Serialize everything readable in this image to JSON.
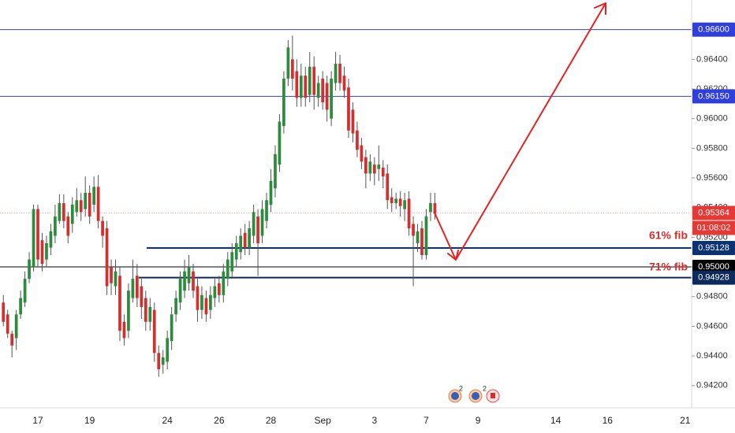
{
  "chart_data": {
    "type": "candlestick",
    "up_color": "#2e8b3e",
    "down_color": "#d32f2f",
    "wick_color": "#555555",
    "categories": [
      null,
      null,
      null,
      null,
      null,
      null,
      null,
      null,
      "17",
      null,
      null,
      null,
      null,
      null,
      null,
      null,
      null,
      null,
      null,
      null,
      "19",
      null,
      null,
      null,
      null,
      null,
      null,
      null,
      null,
      null,
      null,
      null,
      null,
      null,
      null,
      null,
      null,
      null,
      "24",
      null,
      null,
      null,
      null,
      null,
      null,
      null,
      null,
      null,
      null,
      null,
      "26",
      null,
      null,
      null,
      null,
      null,
      null,
      null,
      null,
      null,
      null,
      null,
      "28",
      null,
      null,
      null,
      null,
      null,
      null,
      null,
      null,
      null,
      null,
      null,
      "Sep",
      null,
      null,
      null,
      null,
      null,
      null,
      null,
      null,
      null,
      null,
      null,
      "3",
      null,
      null,
      null,
      null,
      null,
      null,
      null,
      null,
      null,
      null,
      null,
      "7",
      null,
      null,
      null,
      null,
      null,
      null,
      null,
      null,
      null,
      null,
      null,
      "9",
      null,
      null,
      null,
      null,
      null,
      null,
      null,
      null,
      null,
      null,
      null,
      null,
      null,
      null,
      null,
      null,
      null,
      "14",
      null,
      null,
      null,
      null,
      null,
      null,
      null,
      null,
      null,
      null,
      null,
      "16",
      null,
      null,
      null,
      null,
      null,
      null,
      null,
      null,
      null,
      null,
      null,
      null,
      null,
      null,
      null,
      null,
      null,
      "21",
      null
    ],
    "open": [
      0.9476,
      0.9468,
      0.9455,
      0.9452,
      0.9468,
      0.9476,
      0.9492,
      0.95,
      0.9539,
      0.9518,
      0.9505,
      0.9513,
      0.9521,
      0.9531,
      0.9543,
      0.9534,
      0.9529,
      0.9537,
      0.9545,
      0.9539,
      0.955,
      0.9542,
      0.9554,
      0.9531,
      0.9526,
      0.95,
      0.9487,
      0.9494,
      0.9463,
      0.9457,
      0.9479,
      0.9494,
      0.9487,
      0.9479,
      0.9463,
      0.9471,
      0.9442,
      0.9434,
      0.9436,
      0.945,
      0.9468,
      0.9476,
      0.9484,
      0.9489,
      0.9497,
      0.9487,
      0.9471,
      0.9479,
      0.9471,
      0.9479,
      0.9489,
      0.9481,
      0.9492,
      0.9497,
      0.9505,
      0.951,
      0.9523,
      0.9513,
      0.9521,
      0.9534,
      0.9521,
      0.9531,
      0.9542,
      0.9553,
      0.9569,
      0.9595,
      0.9627,
      0.964,
      0.9632,
      0.9614,
      0.9629,
      0.9616,
      0.9635,
      0.9614,
      0.9627,
      0.9624,
      0.96,
      0.9624,
      0.9637,
      0.9629,
      0.9621,
      0.9606,
      0.9592,
      0.9582,
      0.9574,
      0.9563,
      0.9569,
      0.9566,
      0.9567,
      0.9563,
      0.9547,
      0.9543,
      0.9546,
      0.9539,
      0.9546,
      0.9529,
      0.9516,
      0.9526,
      0.9508,
      0.9537,
      0.9543,
      null,
      null,
      null,
      null,
      null,
      null,
      null,
      null,
      null,
      null,
      null,
      null,
      null,
      null,
      null,
      null,
      null,
      null,
      null,
      null,
      null,
      null,
      null,
      null,
      null,
      null,
      null,
      null,
      null,
      null,
      null,
      null,
      null,
      null,
      null,
      null,
      null,
      null,
      null,
      null,
      null,
      null,
      null,
      null,
      null,
      null,
      null,
      null,
      null,
      null,
      null,
      null,
      null,
      null,
      null,
      null,
      null,
      null,
      null
    ],
    "high": [
      0.9481,
      0.9471,
      0.9457,
      0.9471,
      0.9484,
      0.9497,
      0.951,
      0.9542,
      0.9542,
      0.9523,
      0.9521,
      0.9529,
      0.9542,
      0.9549,
      0.9549,
      0.9537,
      0.9547,
      0.9553,
      0.955,
      0.9561,
      0.9555,
      0.9561,
      0.9562,
      0.9534,
      0.9531,
      0.9505,
      0.9505,
      0.95,
      0.9468,
      0.9489,
      0.9505,
      0.9502,
      0.9492,
      0.9484,
      0.9479,
      0.9476,
      0.9447,
      0.9444,
      0.9457,
      0.9473,
      0.9484,
      0.9497,
      0.9505,
      0.9508,
      0.9502,
      0.9492,
      0.9487,
      0.9484,
      0.9487,
      0.9492,
      0.9494,
      0.9502,
      0.951,
      0.9516,
      0.9521,
      0.9526,
      0.9529,
      0.9531,
      0.9542,
      0.9539,
      0.9545,
      0.955,
      0.9566,
      0.9582,
      0.9603,
      0.9632,
      0.9653,
      0.9656,
      0.964,
      0.9637,
      0.9635,
      0.9645,
      0.9642,
      0.9629,
      0.9632,
      0.9629,
      0.9632,
      0.9645,
      0.9643,
      0.9635,
      0.9627,
      0.9611,
      0.9598,
      0.9587,
      0.9579,
      0.9576,
      0.9574,
      0.9582,
      0.9572,
      0.9569,
      0.9553,
      0.955,
      0.9551,
      0.955,
      0.9551,
      0.9534,
      0.9529,
      0.9531,
      0.9539,
      0.955,
      0.955,
      null,
      null,
      null,
      null,
      null,
      null,
      null,
      null,
      null,
      null,
      null,
      null,
      null,
      null,
      null,
      null,
      null,
      null,
      null,
      null,
      null,
      null,
      null,
      null,
      null,
      null,
      null,
      null,
      null,
      null,
      null,
      null,
      null,
      null,
      null,
      null,
      null,
      null,
      null,
      null,
      null,
      null,
      null,
      null,
      null,
      null,
      null,
      null,
      null,
      null,
      null,
      null,
      null,
      null,
      null,
      null,
      null,
      null,
      null
    ],
    "low": [
      0.946,
      0.9452,
      0.9439,
      0.9444,
      0.9465,
      0.9473,
      0.9489,
      0.9497,
      0.95,
      0.9497,
      0.95,
      0.9508,
      0.9516,
      0.9529,
      0.9526,
      0.9516,
      0.9523,
      0.9534,
      0.9531,
      0.9534,
      0.9529,
      0.9537,
      0.9526,
      0.9513,
      0.9481,
      0.9481,
      0.9481,
      0.945,
      0.9447,
      0.9452,
      0.9476,
      0.9473,
      0.9465,
      0.9457,
      0.9457,
      0.9436,
      0.9426,
      0.9428,
      0.9431,
      0.9444,
      0.9463,
      0.9471,
      0.9479,
      0.9484,
      0.9479,
      0.9463,
      0.9465,
      0.9463,
      0.9465,
      0.9473,
      0.9476,
      0.9476,
      0.9487,
      0.9492,
      0.95,
      0.9505,
      0.9508,
      0.9508,
      0.9516,
      0.9494,
      0.9516,
      0.9526,
      0.9537,
      0.9547,
      0.9564,
      0.959,
      0.9622,
      0.9619,
      0.9608,
      0.9608,
      0.9608,
      0.9611,
      0.9606,
      0.9608,
      0.9606,
      0.9598,
      0.9595,
      0.9619,
      0.9619,
      0.9614,
      0.9587,
      0.9584,
      0.9574,
      0.9566,
      0.9553,
      0.9558,
      0.9555,
      0.9558,
      0.9553,
      0.9539,
      0.9537,
      0.9539,
      0.9534,
      0.9531,
      0.9521,
      0.9487,
      0.951,
      0.9505,
      0.9505,
      0.9531,
      0.9532,
      null,
      null,
      null,
      null,
      null,
      null,
      null,
      null,
      null,
      null,
      null,
      null,
      null,
      null,
      null,
      null,
      null,
      null,
      null,
      null,
      null,
      null,
      null,
      null,
      null,
      null,
      null,
      null,
      null,
      null,
      null,
      null,
      null,
      null,
      null,
      null,
      null,
      null,
      null,
      null,
      null,
      null,
      null,
      null,
      null,
      null,
      null,
      null,
      null,
      null,
      null,
      null,
      null,
      null,
      null,
      null,
      null,
      null,
      null
    ],
    "close": [
      0.9463,
      0.9455,
      0.9447,
      0.9468,
      0.9479,
      0.9492,
      0.9505,
      0.9539,
      0.9505,
      0.9502,
      0.9516,
      0.9524,
      0.9534,
      0.9543,
      0.9531,
      0.9521,
      0.9542,
      0.9545,
      0.9537,
      0.955,
      0.9534,
      0.9554,
      0.9531,
      0.9521,
      0.9487,
      0.9489,
      0.9497,
      0.9457,
      0.9452,
      0.9484,
      0.9492,
      0.9479,
      0.9473,
      0.9463,
      0.9473,
      0.9442,
      0.9431,
      0.9439,
      0.9452,
      0.9468,
      0.9479,
      0.9492,
      0.9497,
      0.95,
      0.9484,
      0.9471,
      0.9481,
      0.9468,
      0.9481,
      0.9487,
      0.9481,
      0.9497,
      0.9505,
      0.951,
      0.9516,
      0.9521,
      0.9513,
      0.9526,
      0.9537,
      0.9516,
      0.9539,
      0.9545,
      0.9558,
      0.9576,
      0.9598,
      0.9627,
      0.9648,
      0.9627,
      0.9614,
      0.9629,
      0.9614,
      0.9635,
      0.9616,
      0.9624,
      0.9611,
      0.9606,
      0.9627,
      0.9637,
      0.9624,
      0.9619,
      0.9592,
      0.959,
      0.9579,
      0.9571,
      0.9563,
      0.9571,
      0.9563,
      0.9569,
      0.9561,
      0.9545,
      0.9543,
      0.9546,
      0.9541,
      0.9545,
      0.9526,
      0.9521,
      0.9524,
      0.9508,
      0.9534,
      0.9543,
      0.9536,
      null,
      null,
      null,
      null,
      null,
      null,
      null,
      null,
      null,
      null,
      null,
      null,
      null,
      null,
      null,
      null,
      null,
      null,
      null,
      null,
      null,
      null,
      null,
      null,
      null,
      null,
      null,
      null,
      null,
      null,
      null,
      null,
      null,
      null,
      null,
      null,
      null,
      null,
      null,
      null,
      null,
      null,
      null,
      null,
      null,
      null,
      null,
      null,
      null,
      null,
      null,
      null,
      null,
      null,
      null,
      null,
      null,
      null,
      null
    ],
    "ylim": [
      0.9405,
      0.968
    ],
    "yticks": [
      {
        "value": 0.942,
        "label": "0.94200"
      },
      {
        "value": 0.944,
        "label": "0.94400"
      },
      {
        "value": 0.946,
        "label": "0.94600"
      },
      {
        "value": 0.948,
        "label": "0.94800"
      },
      {
        "value": 0.95,
        "label": "0.95000"
      },
      {
        "value": 0.952,
        "label": "0.95200"
      },
      {
        "value": 0.954,
        "label": "0.95400"
      },
      {
        "value": 0.956,
        "label": "0.95600"
      },
      {
        "value": 0.958,
        "label": "0.95800"
      },
      {
        "value": 0.96,
        "label": "0.96000"
      },
      {
        "value": 0.962,
        "label": "0.96200"
      },
      {
        "value": 0.964,
        "label": "0.96400"
      }
    ],
    "grid": false,
    "levels": [
      {
        "value": 0.966,
        "label": "0.96600",
        "color": "#2f3fdc"
      },
      {
        "value": 0.9615,
        "label": "0.96150",
        "color": "#2f3fdc"
      },
      {
        "value": 0.95128,
        "label": "0.95128",
        "color": "#0d3273"
      },
      {
        "value": 0.95,
        "label": "0.95000",
        "color": "#000000"
      },
      {
        "value": 0.94928,
        "label": "0.94928",
        "color": "#0d2a5c"
      }
    ],
    "last_price": {
      "value": 0.95364,
      "label": "0.95364",
      "color": "#e53935"
    },
    "countdown": "01:08:02",
    "annotations": [
      "61% fib",
      "71% fib"
    ],
    "annotation_color": "#d32f2f",
    "event_counts": [
      2,
      2
    ]
  }
}
